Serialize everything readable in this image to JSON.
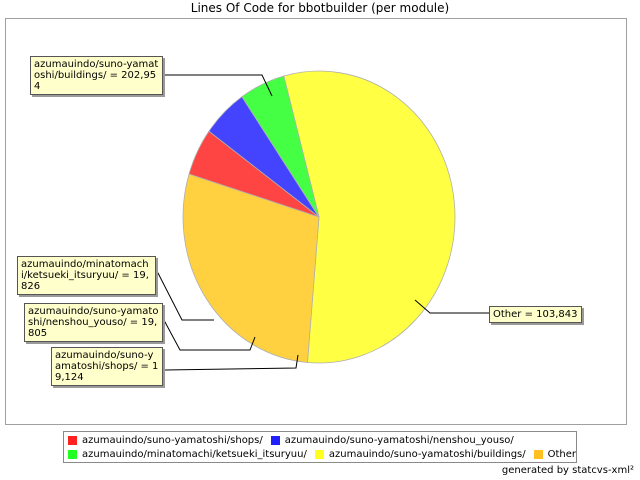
{
  "chart_data": {
    "type": "pie",
    "title": "Lines Of Code for bbotbuilder (per module)",
    "slices": [
      {
        "name": "azumauindo/suno-yamatoshi/buildings/",
        "value": 202954,
        "label": "azumauindo/suno-yamatoshi/buildings/ = 202,954",
        "color": "#ffff44"
      },
      {
        "name": "Other",
        "value": 103843,
        "label": "Other = 103,843",
        "color": "#ffd040"
      },
      {
        "name": "azumauindo/suno-yamatoshi/shops/",
        "value": 19124,
        "label": "azumauindo/suno-yamatoshi/shops/ = 19,124",
        "color": "#ff4444"
      },
      {
        "name": "azumauindo/suno-yamatoshi/nenshou_youso/",
        "value": 19805,
        "label": "azumauindo/suno-yamatoshi/nenshou_youso/ = 19,805",
        "color": "#4444ff"
      },
      {
        "name": "azumauindo/minatomachi/ketsueki_itsuryuu/",
        "value": 19826,
        "label": "azumauindo/minatomachi/ketsueki_itsuryuu/ = 19,826",
        "color": "#44ff44"
      }
    ],
    "legend": [
      {
        "label": "azumauindo/suno-yamatoshi/shops/",
        "color": "#ff2020"
      },
      {
        "label": "azumauindo/suno-yamatoshi/nenshou_youso/",
        "color": "#2020ff"
      },
      {
        "label": "azumauindo/minatomachi/ketsueki_itsuryuu/",
        "color": "#20ff20"
      },
      {
        "label": "azumauindo/suno-yamatoshi/buildings/",
        "color": "#ffff20"
      },
      {
        "label": "Other",
        "color": "#ffc020"
      }
    ],
    "legend_position": "bottom"
  },
  "footer": "generated by statcvs-xml²"
}
